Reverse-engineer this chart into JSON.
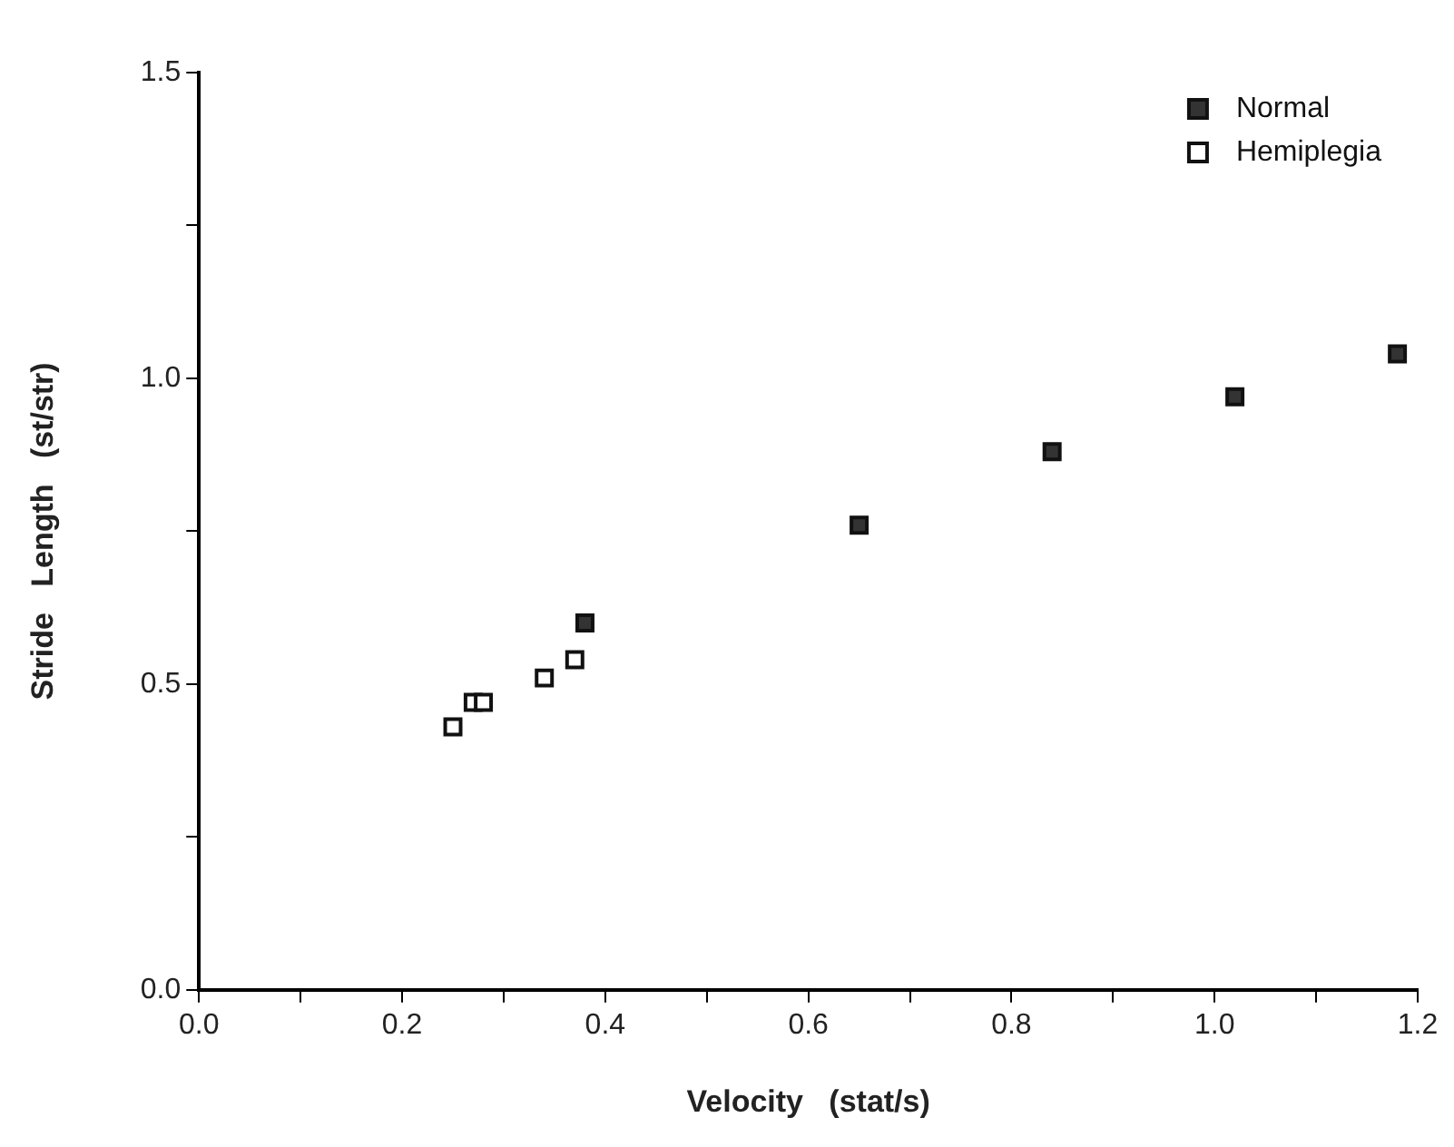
{
  "chart_data": {
    "type": "scatter",
    "xlabel": "Velocity   (stat/s)",
    "ylabel": "Stride   Length   (st/str)",
    "xlim": [
      0,
      1.2
    ],
    "ylim": [
      0,
      1.5
    ],
    "xticks": [
      {
        "value": 0,
        "label": "0.0"
      },
      {
        "value": 0.1,
        "label": null
      },
      {
        "value": 0.2,
        "label": "0.2"
      },
      {
        "value": 0.3,
        "label": null
      },
      {
        "value": 0.4,
        "label": "0.4"
      },
      {
        "value": 0.5,
        "label": null
      },
      {
        "value": 0.6,
        "label": "0.6"
      },
      {
        "value": 0.7,
        "label": null
      },
      {
        "value": 0.8,
        "label": "0.8"
      },
      {
        "value": 0.9,
        "label": null
      },
      {
        "value": 1,
        "label": "1.0"
      },
      {
        "value": 1.1,
        "label": null
      },
      {
        "value": 1.2,
        "label": "1.2"
      }
    ],
    "yticks": [
      {
        "value": 0,
        "label": "0.0"
      },
      {
        "value": 0.25,
        "label": null
      },
      {
        "value": 0.5,
        "label": "0.5"
      },
      {
        "value": 0.75,
        "label": null
      },
      {
        "value": 1,
        "label": "1.0"
      },
      {
        "value": 1.25,
        "label": null
      },
      {
        "value": 1.5,
        "label": "1.5"
      }
    ],
    "series": [
      {
        "name": "Normal",
        "color": "#333333",
        "marker": "square",
        "x": [
          0.38,
          0.65,
          0.84,
          1.02,
          1.18
        ],
        "values": [
          0.6,
          0.76,
          0.88,
          0.97,
          1.04
        ]
      },
      {
        "name": "Hemiplegia",
        "color": "#ffffff",
        "marker": "square",
        "x": [
          0.25,
          0.27,
          0.28,
          0.34,
          0.37
        ],
        "values": [
          0.43,
          0.47,
          0.47,
          0.51,
          0.54
        ]
      }
    ],
    "grid": false,
    "legend": "top right"
  }
}
